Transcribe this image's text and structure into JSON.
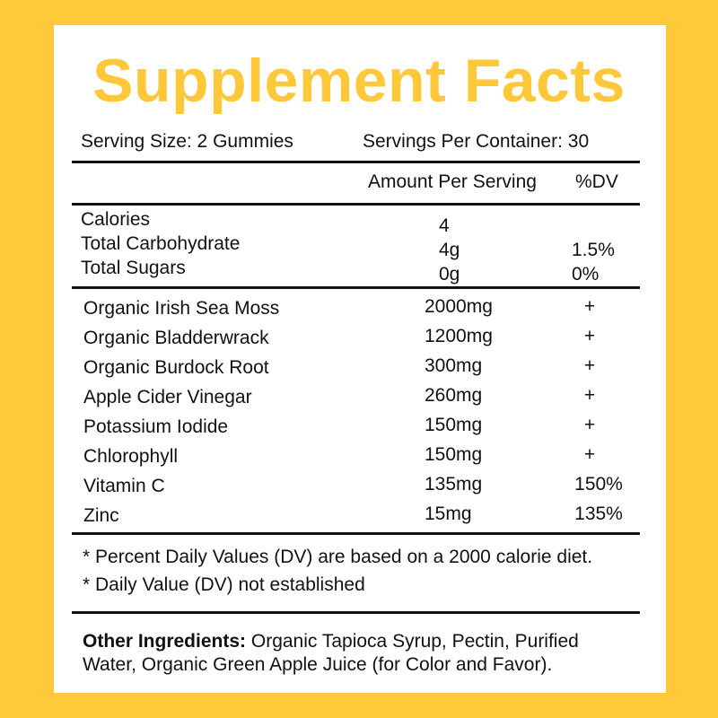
{
  "title": "Supplement Facts",
  "serving_size": "Serving Size: 2 Gummies",
  "servings_per_container": "Servings Per Container: 30",
  "header": {
    "amount": "Amount Per Serving",
    "dv": "%DV"
  },
  "nutrition": [
    {
      "name": "Calories",
      "amount": "4",
      "dv": ""
    },
    {
      "name": "Total Carbohydrate",
      "amount": "4g",
      "dv": "1.5%"
    },
    {
      "name": "Total Sugars",
      "amount": "0g",
      "dv": "0%"
    }
  ],
  "ingredients": [
    {
      "name": "Organic Irish Sea Moss",
      "amount": "2000mg",
      "dv": "+"
    },
    {
      "name": "Organic Bladderwrack",
      "amount": "1200mg",
      "dv": "+"
    },
    {
      "name": "Organic Burdock Root",
      "amount": "300mg",
      "dv": "+"
    },
    {
      "name": "Apple Cider Vinegar",
      "amount": "260mg",
      "dv": "+"
    },
    {
      "name": "Potassium Iodide",
      "amount": "150mg",
      "dv": "+"
    },
    {
      "name": "Chlorophyll",
      "amount": "150mg",
      "dv": "+"
    },
    {
      "name": "Vitamin C",
      "amount": "135mg",
      "dv": "150%"
    },
    {
      "name": "Zinc",
      "amount": "15mg",
      "dv": "135%"
    }
  ],
  "footnotes": [
    "* Percent Daily Values (DV) are based on a 2000 calorie diet.",
    "* Daily Value (DV) not established"
  ],
  "other": {
    "label": "Other Ingredients:",
    "text1": " Organic Tapioca Syrup, Pectin, Purified",
    "text2": "Water, Organic Green Apple Juice (for Color and Favor)."
  },
  "colors": {
    "background": "#FFC93A",
    "title": "#FFC83A"
  }
}
